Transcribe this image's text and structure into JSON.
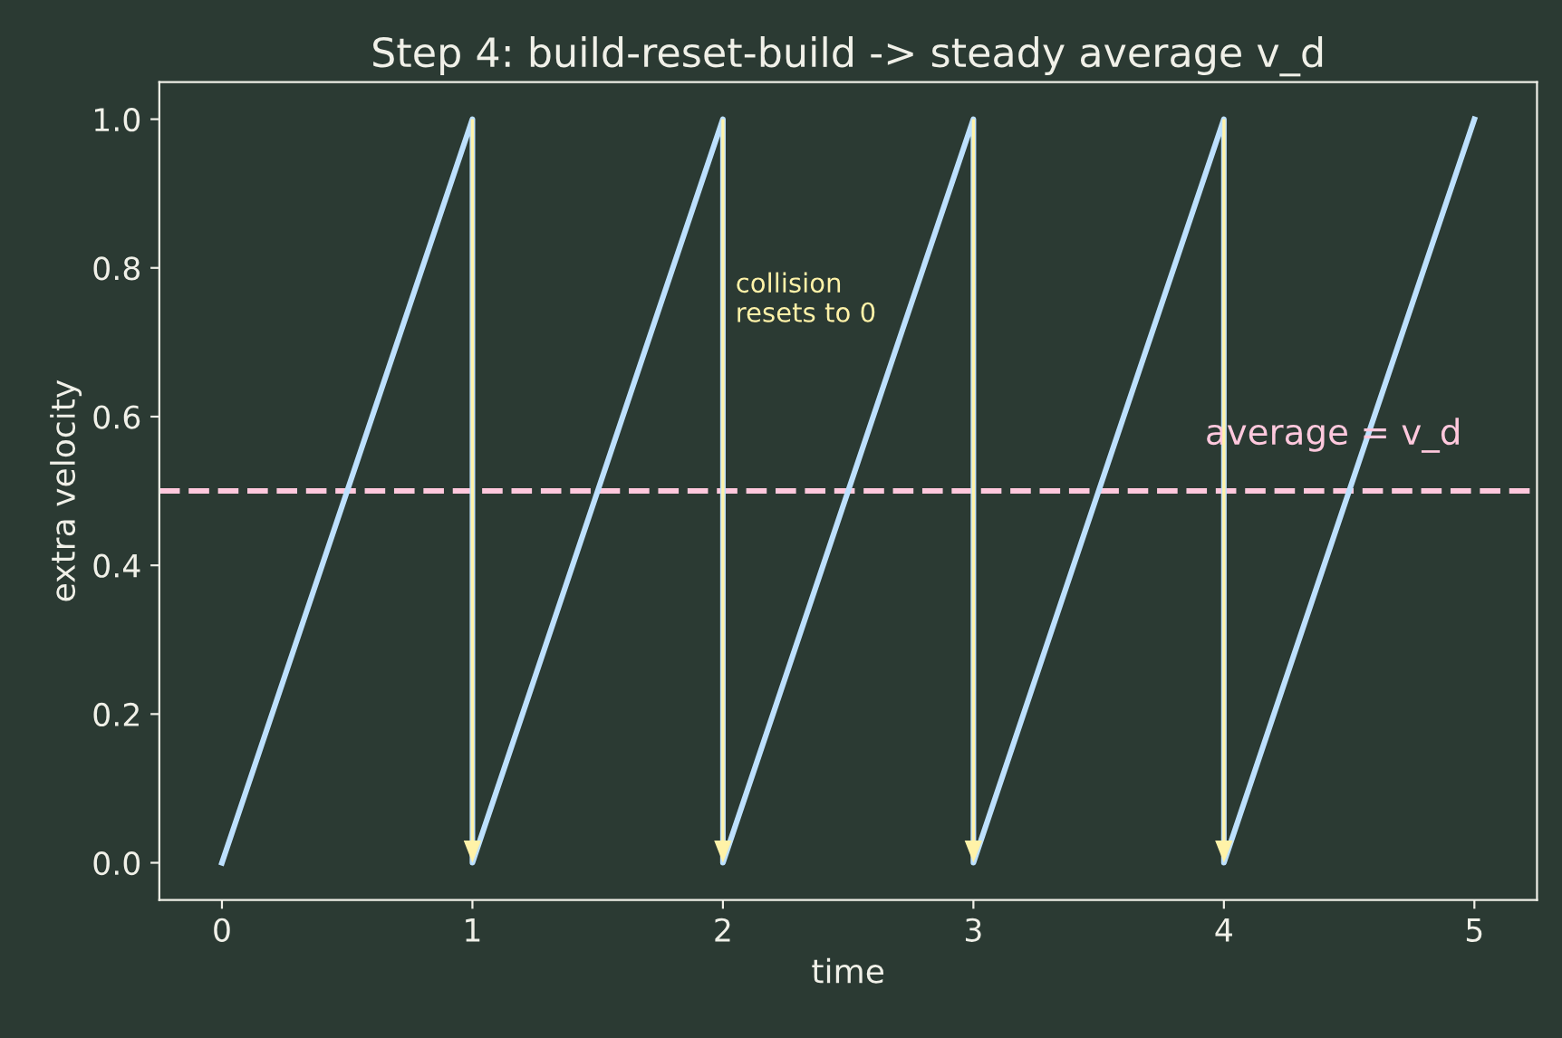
{
  "chart_data": {
    "type": "line",
    "title": "Step 4: build-reset-build -> steady average v_d",
    "xlabel": "time",
    "ylabel": "extra velocity",
    "series": [
      {
        "color": "#bde0fe",
        "x": [
          0,
          1,
          1,
          2,
          2,
          3,
          3,
          4,
          4,
          5
        ],
        "values": [
          0,
          1,
          0,
          1,
          0,
          1,
          0,
          1,
          0,
          1
        ]
      }
    ],
    "xlim": [
      -0.25,
      5.25
    ],
    "ylim": [
      -0.05,
      1.05
    ],
    "xticks": [
      0,
      1,
      2,
      3,
      4,
      5
    ],
    "yticks": [
      {
        "value": 0,
        "label": "0.0"
      },
      0.2,
      0.4,
      0.6,
      0.8,
      {
        "value": 1,
        "label": "1.0"
      }
    ],
    "ref_lines": [
      {
        "axis": "y",
        "value": 0.5,
        "label": "average = v_d",
        "color": "#ffc8dd",
        "line_style": "dashed"
      }
    ],
    "annotations": [
      {
        "text": "collision\nresets to 0",
        "x": 2,
        "y": 0.72
      }
    ],
    "grid": false,
    "legend": false
  }
}
